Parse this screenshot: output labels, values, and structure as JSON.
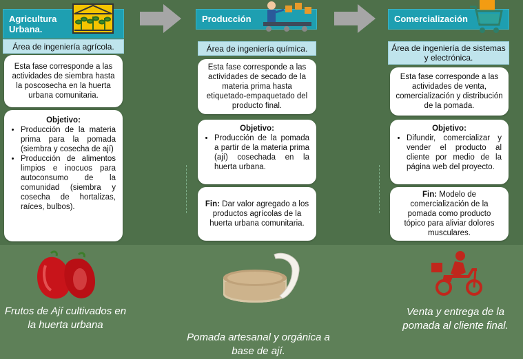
{
  "colors": {
    "background": "#4e704a",
    "header": "#1e9fb1",
    "area": "#bfe4ec",
    "card": "#ffffff",
    "arrow": "#a6a6a6"
  },
  "columns": [
    {
      "header": "Agricultura Urbana.",
      "header_icon": "greenhouse-plants-icon",
      "area": "Área de ingeniería agrícola.",
      "description": "Esta fase corresponde a las actividades de siembra hasta la poscosecha en la huerta urbana comunitaria.",
      "objective_title": "Objetivo:",
      "objectives": [
        "Producción de la materia prima para la pomada (siembra y cosecha de ají)",
        "Producción de alimentos limpios e inocuos para autoconsumo de la comunidad (siembra y cosecha de hortalizas, raíces, bulbos)."
      ],
      "image": "red-peppers-image",
      "caption": "Frutos de Ají cultivados en la huerta urbana"
    },
    {
      "header": "Producción",
      "header_icon": "production-line-worker-icon",
      "area": "Área de ingeniería química.",
      "description": "Esta fase corresponde a las actividades de secado de la materia prima hasta etiquetado-empaquetado del producto final.",
      "objective_title": "Objetivo:",
      "objectives": [
        "Producción de la pomada a partir de la materia prima (ají) cosechada en la huerta urbana."
      ],
      "fin_label": "Fin:",
      "fin_text": "Dar valor agregado a los productos agrícolas de la huerta urbana comunitaria.",
      "image": "ointment-jar-image",
      "caption": "Pomada artesanal y orgánica a base de ají."
    },
    {
      "header": "Comercialización",
      "header_icon": "shopping-cart-icon",
      "area": "Área de ingeniería de sistemas y electrónica.",
      "description": "Esta fase corresponde a las actividades de venta, comercialización y distribución de la pomada.",
      "objective_title": "Objetivo:",
      "objectives": [
        "Difundir, comercializar y vender el producto al cliente por medio de la página web del proyecto."
      ],
      "fin_label": "Fin:",
      "fin_text": "Modelo de comercialización de la pomada como producto tópico para aliviar dolores musculares.",
      "image": "delivery-scooter-icon",
      "caption": "Venta y entrega de la pomada al cliente final."
    }
  ]
}
